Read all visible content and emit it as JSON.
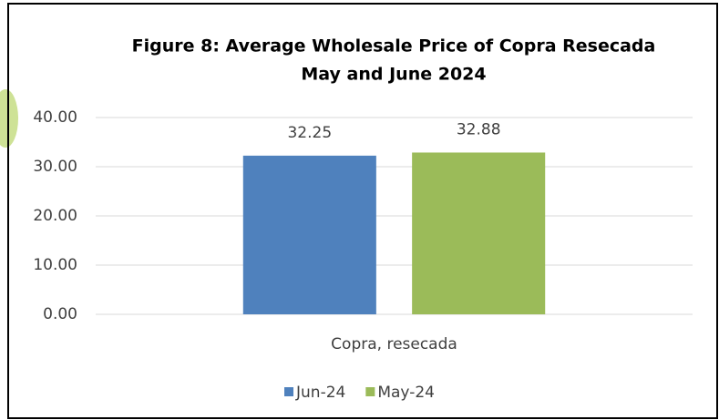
{
  "chart_data": {
    "type": "bar",
    "title": "Figure 8: Average Wholesale Price of Copra Resecada",
    "subtitle": "May and June 2024",
    "categories": [
      "Copra, resecada"
    ],
    "series": [
      {
        "name": "Jun-24",
        "color": "#4f81bd",
        "values": [
          32.25
        ]
      },
      {
        "name": "May-24",
        "color": "#9bbb59",
        "values": [
          32.88
        ]
      }
    ],
    "ylim": [
      0,
      40
    ],
    "yticks": [
      {
        "value": 0,
        "label": "0.00"
      },
      {
        "value": 10,
        "label": "10.00"
      },
      {
        "value": 20,
        "label": "20.00"
      },
      {
        "value": 30,
        "label": "30.00"
      },
      {
        "value": 40,
        "label": "40.00"
      }
    ],
    "grid": true,
    "legend": "bottom"
  }
}
